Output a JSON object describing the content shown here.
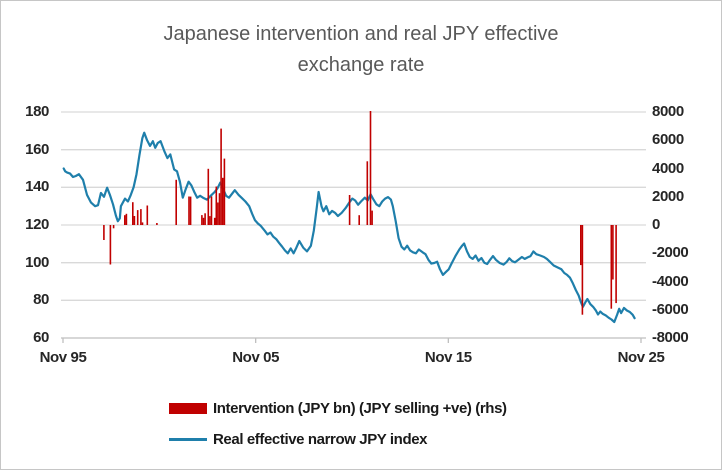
{
  "title": {
    "line1": "Japanese intervention and real JPY effective",
    "line2": "exchange rate"
  },
  "legend": {
    "items": [
      {
        "label": "Intervention (JPY bn) (JPY selling +ve) (rhs)",
        "swatch": "bar-swatch"
      },
      {
        "label": "Real effective narrow JPY index",
        "swatch": "line-swatch"
      }
    ],
    "position": "bottom-left"
  },
  "colors": {
    "bar": "#c00000",
    "line": "#1f7fab",
    "gridline": "#d9d9d9",
    "axis_line": "#bfbfbf",
    "axis_text": "#262626",
    "title_text": "#595959",
    "border": "#c6c6c6"
  },
  "chart_data": {
    "type": "combo bar+line, dual y-axis",
    "title": "Japanese intervention and real JPY effective exchange rate",
    "grid": "horizontal, light gray, 7 lines (left-axis steps of 20)",
    "x_axis": {
      "ticks": [
        "Nov 95",
        "Nov 05",
        "Nov 15",
        "Nov 25"
      ],
      "tick_years": [
        1995.8333,
        2005.8333,
        2015.8333,
        2025.8333
      ]
    },
    "y_left": {
      "series": "Real effective narrow JPY index",
      "labels": [
        "180",
        "160",
        "140",
        "120",
        "100",
        "80",
        "60"
      ],
      "values": [
        180,
        160,
        140,
        120,
        100,
        80,
        60
      ],
      "ylim": [
        60,
        180
      ]
    },
    "y_right": {
      "series": "Intervention (JPY bn) (JPY selling +ve) (rhs)",
      "labels": [
        "8000",
        "6000",
        "4000",
        "2000",
        "0",
        "-2000",
        "-4000",
        "-6000",
        "-8000"
      ],
      "values": [
        8000,
        6000,
        4000,
        2000,
        0,
        -2000,
        -4000,
        -6000,
        -8000
      ],
      "ylim": [
        -8000,
        8000
      ]
    },
    "line_series": {
      "name": "Real effective narrow JPY index",
      "color": "#1f7fab",
      "points": [
        [
          1995.87,
          150
        ],
        [
          1995.95,
          148.5
        ],
        [
          1996.05,
          147.8
        ],
        [
          1996.2,
          147.3
        ],
        [
          1996.35,
          145.5
        ],
        [
          1996.5,
          146
        ],
        [
          1996.66,
          147
        ],
        [
          1996.87,
          144
        ],
        [
          1997.08,
          136
        ],
        [
          1997.28,
          132
        ],
        [
          1997.5,
          130
        ],
        [
          1997.65,
          130.5
        ],
        [
          1997.8,
          137
        ],
        [
          1997.96,
          135
        ],
        [
          1998.12,
          139.8
        ],
        [
          1998.27,
          136
        ],
        [
          1998.43,
          131
        ],
        [
          1998.58,
          125
        ],
        [
          1998.68,
          122
        ],
        [
          1998.78,
          123.5
        ],
        [
          1998.84,
          130
        ],
        [
          1999.05,
          134
        ],
        [
          1999.2,
          132.5
        ],
        [
          1999.35,
          136
        ],
        [
          1999.5,
          140
        ],
        [
          1999.65,
          147
        ],
        [
          1999.8,
          157
        ],
        [
          1999.95,
          166
        ],
        [
          2000.05,
          169
        ],
        [
          2000.2,
          165
        ],
        [
          2000.35,
          162
        ],
        [
          2000.5,
          164.5
        ],
        [
          2000.62,
          161
        ],
        [
          2000.75,
          163.5
        ],
        [
          2000.9,
          164.5
        ],
        [
          2001.1,
          159
        ],
        [
          2001.25,
          155.5
        ],
        [
          2001.4,
          157.5
        ],
        [
          2001.6,
          149.5
        ],
        [
          2001.75,
          148.5
        ],
        [
          2001.9,
          143
        ],
        [
          2002.05,
          134.5
        ],
        [
          2002.2,
          139
        ],
        [
          2002.35,
          143
        ],
        [
          2002.5,
          141
        ],
        [
          2002.65,
          137.5
        ],
        [
          2002.8,
          134.5
        ],
        [
          2002.95,
          135.5
        ],
        [
          2003.1,
          134.5
        ],
        [
          2003.3,
          133.5
        ],
        [
          2003.5,
          135.5
        ],
        [
          2003.7,
          137.5
        ],
        [
          2003.85,
          139.5
        ],
        [
          2004.0,
          142.5
        ],
        [
          2004.15,
          139
        ],
        [
          2004.3,
          135.5
        ],
        [
          2004.45,
          134.5
        ],
        [
          2004.6,
          136.5
        ],
        [
          2004.75,
          138.5
        ],
        [
          2004.95,
          136
        ],
        [
          2005.1,
          134.5
        ],
        [
          2005.3,
          132.5
        ],
        [
          2005.5,
          130
        ],
        [
          2005.65,
          126
        ],
        [
          2005.8,
          122.5
        ],
        [
          2005.95,
          120.8
        ],
        [
          2006.1,
          119.5
        ],
        [
          2006.3,
          117
        ],
        [
          2006.45,
          115
        ],
        [
          2006.6,
          116
        ],
        [
          2006.75,
          113.8
        ],
        [
          2006.9,
          112.5
        ],
        [
          2007.05,
          110.5
        ],
        [
          2007.2,
          108.6
        ],
        [
          2007.35,
          106.5
        ],
        [
          2007.5,
          105
        ],
        [
          2007.65,
          107.6
        ],
        [
          2007.8,
          105
        ],
        [
          2007.95,
          108
        ],
        [
          2008.1,
          111.5
        ],
        [
          2008.3,
          108
        ],
        [
          2008.5,
          106
        ],
        [
          2008.7,
          109
        ],
        [
          2008.85,
          117
        ],
        [
          2009.0,
          129
        ],
        [
          2009.1,
          137.5
        ],
        [
          2009.25,
          130
        ],
        [
          2009.35,
          127.3
        ],
        [
          2009.5,
          130
        ],
        [
          2009.65,
          125.7
        ],
        [
          2009.8,
          127.5
        ],
        [
          2009.95,
          126.5
        ],
        [
          2010.1,
          124.8
        ],
        [
          2010.3,
          126.5
        ],
        [
          2010.5,
          129
        ],
        [
          2010.7,
          132
        ],
        [
          2010.85,
          134
        ],
        [
          2011.0,
          133
        ],
        [
          2011.15,
          130.8
        ],
        [
          2011.3,
          132.5
        ],
        [
          2011.5,
          134.5
        ],
        [
          2011.65,
          133
        ],
        [
          2011.8,
          136.3
        ],
        [
          2011.95,
          133.5
        ],
        [
          2012.1,
          131
        ],
        [
          2012.25,
          130
        ],
        [
          2012.4,
          132.5
        ],
        [
          2012.55,
          134
        ],
        [
          2012.7,
          134.8
        ],
        [
          2012.85,
          133.5
        ],
        [
          2012.95,
          130
        ],
        [
          2013.1,
          122
        ],
        [
          2013.25,
          113
        ],
        [
          2013.4,
          108.5
        ],
        [
          2013.55,
          107
        ],
        [
          2013.7,
          109
        ],
        [
          2013.85,
          106.5
        ],
        [
          2014.0,
          105.5
        ],
        [
          2014.15,
          105
        ],
        [
          2014.3,
          107
        ],
        [
          2014.5,
          105.5
        ],
        [
          2014.65,
          104.5
        ],
        [
          2014.8,
          101.5
        ],
        [
          2014.95,
          99.5
        ],
        [
          2015.1,
          99.8
        ],
        [
          2015.25,
          100.5
        ],
        [
          2015.4,
          96.5
        ],
        [
          2015.55,
          93.5
        ],
        [
          2015.7,
          95
        ],
        [
          2015.85,
          96.5
        ],
        [
          2016.0,
          99.5
        ],
        [
          2016.2,
          103.5
        ],
        [
          2016.4,
          107
        ],
        [
          2016.55,
          109
        ],
        [
          2016.65,
          110.2
        ],
        [
          2016.8,
          106
        ],
        [
          2016.95,
          103
        ],
        [
          2017.1,
          102
        ],
        [
          2017.25,
          103.8
        ],
        [
          2017.4,
          101
        ],
        [
          2017.55,
          102.5
        ],
        [
          2017.7,
          100
        ],
        [
          2017.85,
          99.3
        ],
        [
          2018.0,
          101.5
        ],
        [
          2018.15,
          103.5
        ],
        [
          2018.3,
          101.5
        ],
        [
          2018.5,
          99.8
        ],
        [
          2018.7,
          99
        ],
        [
          2018.85,
          100.3
        ],
        [
          2019.0,
          102.3
        ],
        [
          2019.15,
          100.8
        ],
        [
          2019.3,
          100.2
        ],
        [
          2019.5,
          101.8
        ],
        [
          2019.65,
          103
        ],
        [
          2019.8,
          102
        ],
        [
          2019.95,
          102.8
        ],
        [
          2020.1,
          103.5
        ],
        [
          2020.25,
          106
        ],
        [
          2020.4,
          104.5
        ],
        [
          2020.6,
          103.8
        ],
        [
          2020.8,
          103
        ],
        [
          2020.95,
          102
        ],
        [
          2021.1,
          100.5
        ],
        [
          2021.3,
          98.5
        ],
        [
          2021.5,
          97.5
        ],
        [
          2021.7,
          96.5
        ],
        [
          2021.85,
          94.5
        ],
        [
          2022.0,
          93.5
        ],
        [
          2022.15,
          92
        ],
        [
          2022.3,
          89
        ],
        [
          2022.45,
          85.5
        ],
        [
          2022.6,
          82.5
        ],
        [
          2022.7,
          79.5
        ],
        [
          2022.82,
          76.5
        ],
        [
          2022.95,
          79
        ],
        [
          2023.05,
          80.7
        ],
        [
          2023.2,
          78
        ],
        [
          2023.35,
          76.5
        ],
        [
          2023.5,
          74.5
        ],
        [
          2023.6,
          72.5
        ],
        [
          2023.72,
          74
        ],
        [
          2023.85,
          72.8
        ],
        [
          2024.0,
          72
        ],
        [
          2024.15,
          70.8
        ],
        [
          2024.3,
          69.8
        ],
        [
          2024.45,
          68.5
        ],
        [
          2024.6,
          72.5
        ],
        [
          2024.7,
          75.5
        ],
        [
          2024.8,
          73.2
        ],
        [
          2024.95,
          76
        ],
        [
          2025.1,
          74.6
        ],
        [
          2025.25,
          73.8
        ],
        [
          2025.4,
          72.3
        ],
        [
          2025.5,
          70.5
        ]
      ]
    },
    "bar_series": {
      "name": "Intervention (JPY bn) (JPY selling +ve) (rhs)",
      "color": "#c00000",
      "unit": "JPY bn, JPY selling positive",
      "bars": [
        [
          "1997-12",
          -1059
        ],
        [
          "1998-04",
          -2795
        ],
        [
          "1998-06",
          -231
        ],
        [
          "1999-01",
          691
        ],
        [
          "1999-02",
          794
        ],
        [
          "1999-06",
          1616
        ],
        [
          "1999-07",
          638
        ],
        [
          "1999-09",
          1054
        ],
        [
          "1999-11",
          1123
        ],
        [
          "1999-12",
          183
        ],
        [
          "2000-03",
          1380
        ],
        [
          "2000-09",
          141
        ],
        [
          "2001-09",
          3198
        ],
        [
          "2002-05",
          2017
        ],
        [
          "2002-06",
          2009
        ],
        [
          "2003-01",
          700
        ],
        [
          "2003-02",
          513
        ],
        [
          "2003-03",
          829
        ],
        [
          "2003-05",
          3980
        ],
        [
          "2003-06",
          629
        ],
        [
          "2003-07",
          2027
        ],
        [
          "2003-09",
          510
        ],
        [
          "2003-10",
          2723
        ],
        [
          "2003-11",
          1596
        ],
        [
          "2003-12",
          2250
        ],
        [
          "2004-01",
          6822
        ],
        [
          "2004-02",
          3342
        ],
        [
          "2004-03",
          4703
        ],
        [
          "2010-09",
          2125
        ],
        [
          "2011-03",
          693
        ],
        [
          "2011-08",
          4513
        ],
        [
          "2011-10",
          8072
        ],
        [
          "2011-11",
          1019
        ],
        [
          "2022-09",
          -2838
        ],
        [
          "2022-10",
          -6350
        ],
        [
          "2024-04",
          -5928
        ],
        [
          "2024-05",
          -3861
        ],
        [
          "2024-07",
          -5532
        ]
      ]
    }
  }
}
